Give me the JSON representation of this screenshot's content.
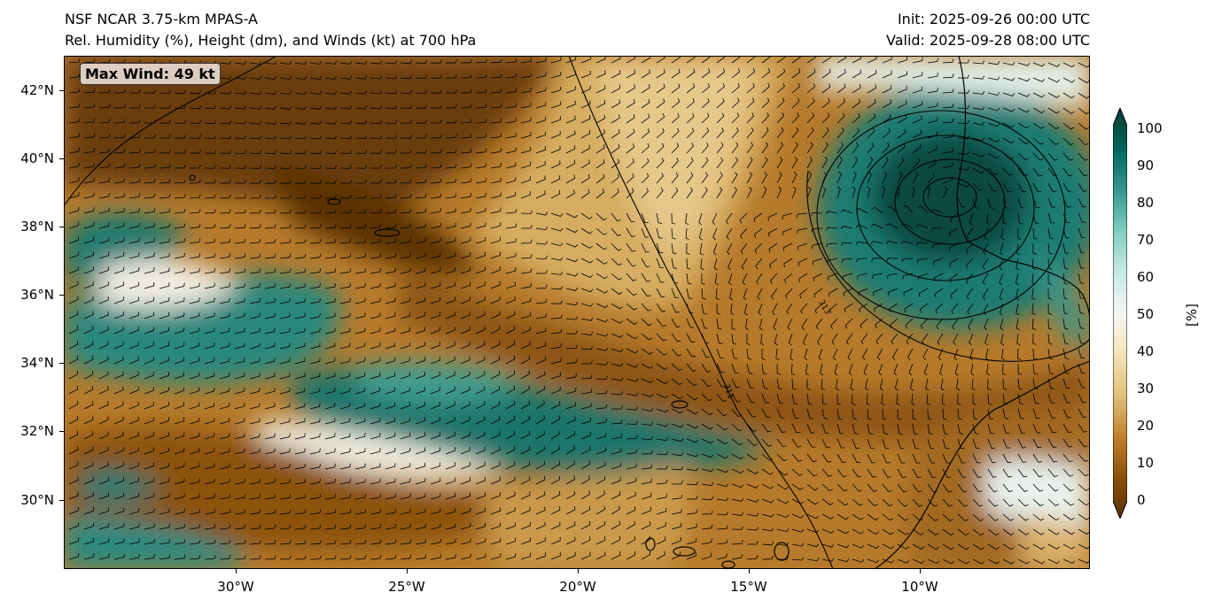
{
  "header": {
    "model": "NSF NCAR 3.75-km MPAS-A",
    "fields": "Rel. Humidity (%), Height (dm), and Winds (kt) at 700 hPa",
    "init": "Init: 2025-09-26 00:00 UTC",
    "valid": "Valid: 2025-09-28 08:00 UTC"
  },
  "annotation": {
    "max_wind": "Max Wind: 49 kt"
  },
  "axes": {
    "lat_labels": [
      "42°N",
      "40°N",
      "38°N",
      "36°N",
      "34°N",
      "32°N",
      "30°N"
    ],
    "lon_labels": [
      "30°W",
      "25°W",
      "20°W",
      "15°W",
      "10°W"
    ]
  },
  "colorbar": {
    "ticks": [
      "100",
      "90",
      "80",
      "70",
      "60",
      "50",
      "40",
      "30",
      "20",
      "10",
      "0"
    ],
    "unit": "[%]",
    "colors": [
      "#543005",
      "#8c510a",
      "#bf812d",
      "#dfc27d",
      "#f6e8c3",
      "#f5f5f5",
      "#c7eae5",
      "#80cdc1",
      "#35978f",
      "#01665e",
      "#003c30"
    ]
  },
  "map": {
    "lon_range": [
      -35,
      -5
    ],
    "lat_range": [
      28,
      43
    ],
    "height_contours_dm": [
      "313",
      "311"
    ]
  }
}
